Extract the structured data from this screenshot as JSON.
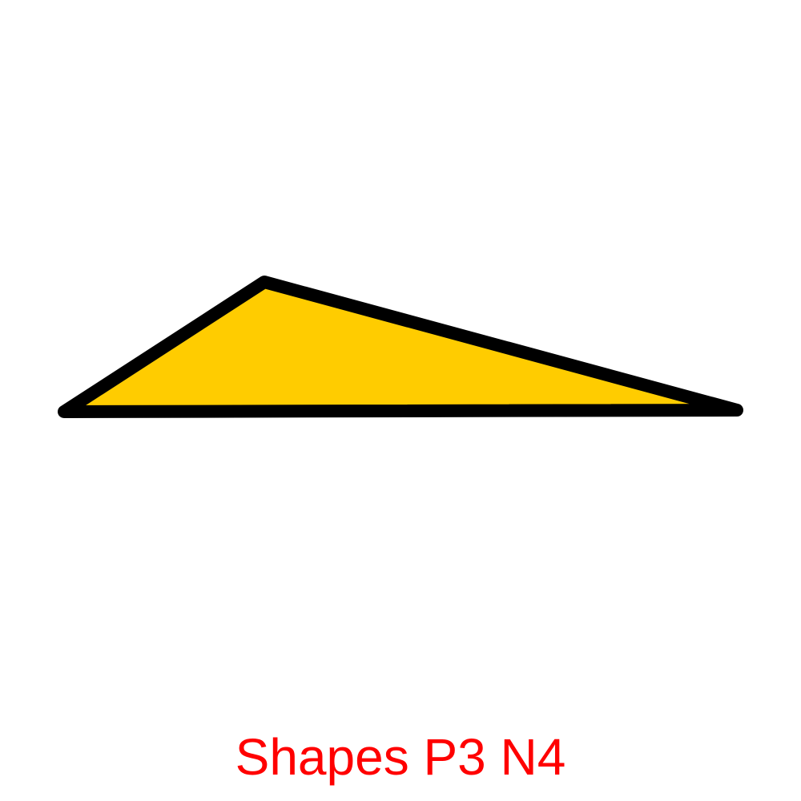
{
  "shape": {
    "kind": "triangle",
    "fill_color": "#ffcc00",
    "stroke_color": "#000000"
  },
  "caption": {
    "text": "Shapes P3 N4",
    "color": "#ff0000"
  }
}
